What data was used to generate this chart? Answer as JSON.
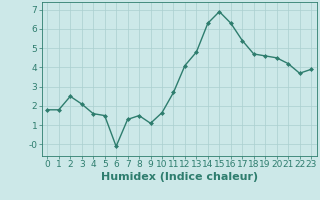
{
  "x": [
    0,
    1,
    2,
    3,
    4,
    5,
    6,
    7,
    8,
    9,
    10,
    11,
    12,
    13,
    14,
    15,
    16,
    17,
    18,
    19,
    20,
    21,
    22,
    23
  ],
  "y": [
    1.8,
    1.8,
    2.5,
    2.1,
    1.6,
    1.5,
    -0.1,
    1.3,
    1.5,
    1.1,
    1.65,
    2.7,
    4.1,
    4.8,
    6.3,
    6.9,
    6.3,
    5.4,
    4.7,
    4.6,
    4.5,
    4.2,
    3.7,
    3.9
  ],
  "line_color": "#2e7d6e",
  "marker": "D",
  "marker_size": 2.0,
  "background_color": "#cce8e8",
  "grid_color": "#aacfcf",
  "xlabel": "Humidex (Indice chaleur)",
  "ylim": [
    -0.6,
    7.4
  ],
  "xlim": [
    -0.5,
    23.5
  ],
  "yticks": [
    0,
    1,
    2,
    3,
    4,
    5,
    6,
    7
  ],
  "ytick_labels": [
    "-0",
    "1",
    "2",
    "3",
    "4",
    "5",
    "6",
    "7"
  ],
  "xticks": [
    0,
    1,
    2,
    3,
    4,
    5,
    6,
    7,
    8,
    9,
    10,
    11,
    12,
    13,
    14,
    15,
    16,
    17,
    18,
    19,
    20,
    21,
    22,
    23
  ],
  "tick_label_fontsize": 6.5,
  "xlabel_fontsize": 8,
  "tick_color": "#2e7d6e",
  "axis_color": "#2e7d6e",
  "linewidth": 1.0
}
